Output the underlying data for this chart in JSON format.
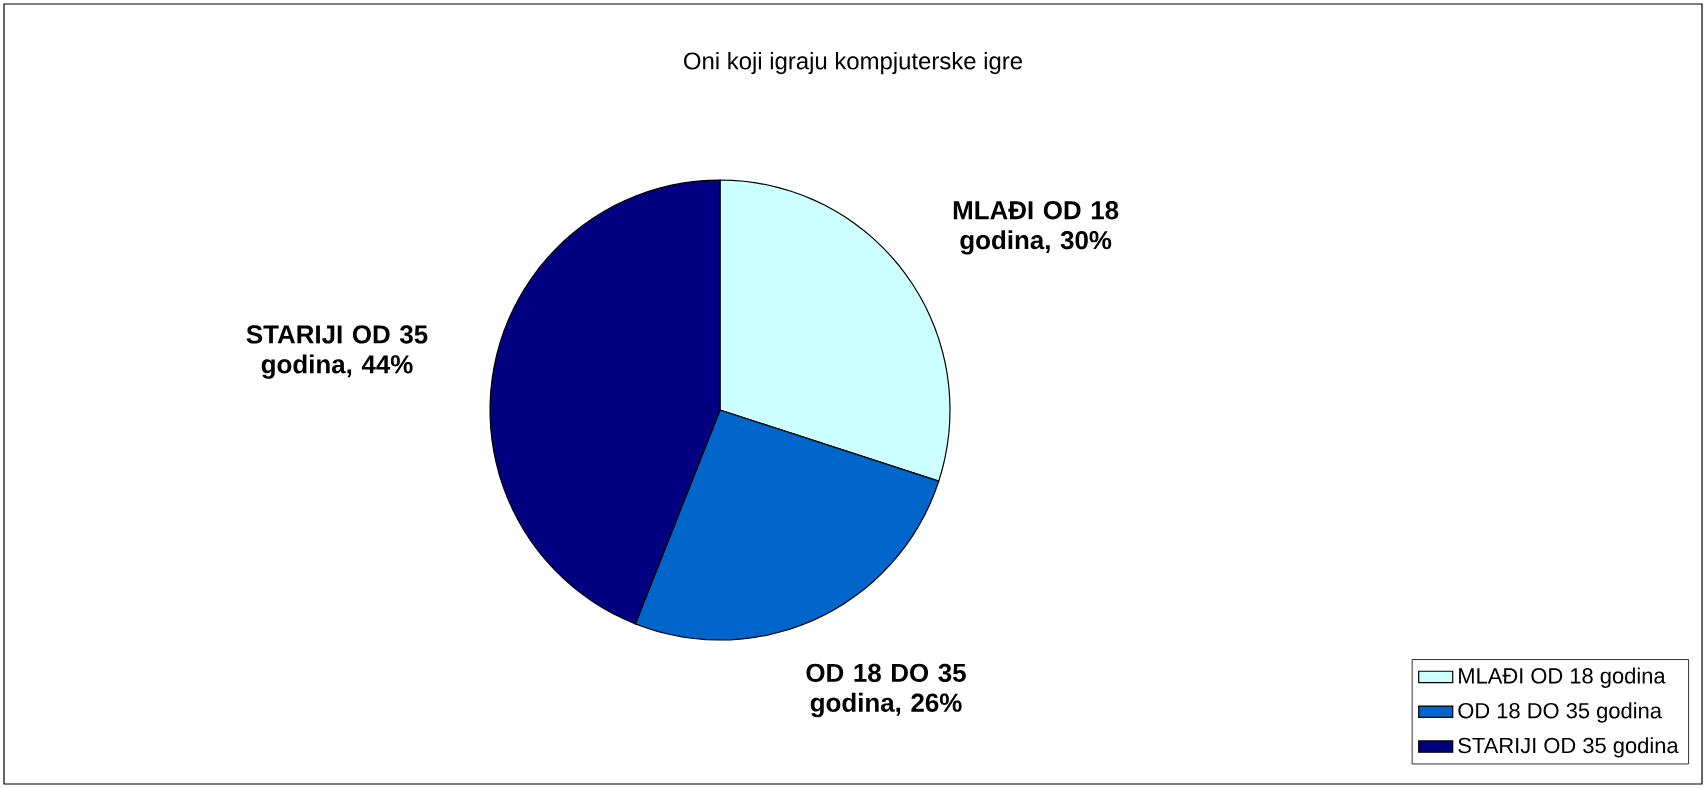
{
  "chart_data": {
    "type": "pie",
    "title": "Oni koji igraju kompjuterske igre",
    "categories": [
      "MLAĐI OD 18 godina",
      "OD 18 DO 35 godina",
      "STARIJI OD 35 godina"
    ],
    "values": [
      30,
      26,
      44
    ],
    "colors": [
      "#ccffff",
      "#0066cc",
      "#000080"
    ],
    "value_labels": [
      "MLAĐI OD 18 godina, 30%",
      "OD 18 DO 35 godina, 26%",
      "STARIJI OD 35 godina, 44%"
    ],
    "legend": "bottom right"
  }
}
